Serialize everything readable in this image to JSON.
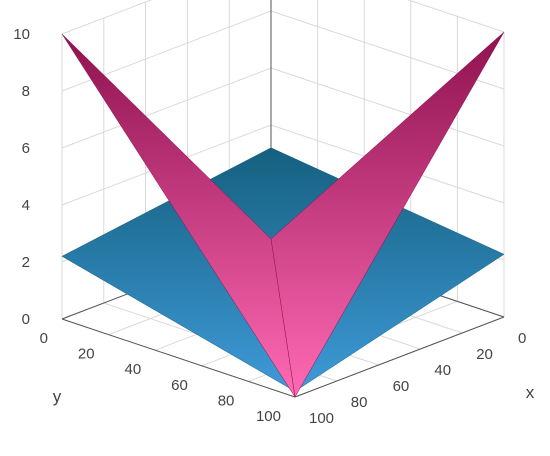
{
  "chart_data": {
    "type": "surface",
    "title": "",
    "axes": {
      "x": {
        "label": "x",
        "ticks": [
          0,
          20,
          40,
          60,
          80,
          100
        ],
        "range": [
          0,
          100
        ]
      },
      "y": {
        "label": "y",
        "ticks": [
          0,
          20,
          40,
          60,
          80,
          100
        ],
        "range": [
          0,
          100
        ]
      },
      "z": {
        "label": "",
        "ticks": [
          0,
          2,
          4,
          6,
          8,
          10
        ],
        "range": [
          0,
          10
        ]
      }
    },
    "grid": true,
    "series": [
      {
        "color_light": "#3e9ad8",
        "color_dark": "#15607f",
        "corners": [
          {
            "x": 0,
            "y": 0,
            "z": 3.2
          },
          {
            "x": 0,
            "y": 100,
            "z": 2.2
          },
          {
            "x": 100,
            "y": 100,
            "z": 0.2
          },
          {
            "x": 100,
            "y": 0,
            "z": 2.2
          }
        ]
      },
      {
        "color_light": "#ff6ab5",
        "color_dark": "#8f124f",
        "corners": [
          {
            "x": 0,
            "y": 0,
            "z": 0.0
          },
          {
            "x": 0,
            "y": 100,
            "z": 10.0
          },
          {
            "x": 100,
            "y": 100,
            "z": 0.0
          },
          {
            "x": 100,
            "y": 0,
            "z": 10.0
          }
        ]
      }
    ]
  }
}
